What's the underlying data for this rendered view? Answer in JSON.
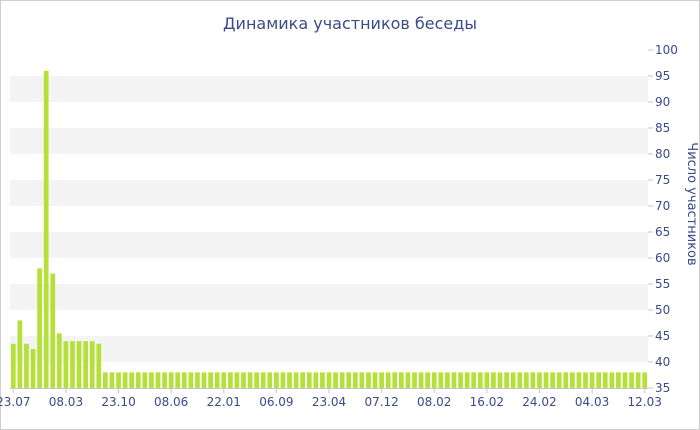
{
  "chart_data": {
    "type": "bar",
    "title": "Динамика участников беседы",
    "xlabel": "",
    "ylabel": "Число участников",
    "ylim": [
      35,
      100
    ],
    "yticks": [
      35,
      40,
      45,
      50,
      55,
      60,
      65,
      70,
      75,
      80,
      85,
      90,
      95,
      100
    ],
    "y_axis_side": "right",
    "grid": "alternating horizontal bands",
    "bar_color": "#b5e03a",
    "x_tick_labels": [
      "23.07",
      "08.03",
      "23.10",
      "08.06",
      "22.01",
      "06.09",
      "23.04",
      "07.12",
      "08.02",
      "16.02",
      "24.02",
      "04.03",
      "12.03"
    ],
    "x_tick_bar_index": [
      0,
      8,
      16,
      24,
      32,
      40,
      48,
      56,
      64,
      72,
      80,
      88,
      96
    ],
    "values": [
      43.5,
      48,
      43.5,
      42.5,
      58,
      96,
      57,
      45.5,
      44,
      44,
      44,
      44,
      44,
      43.5,
      38,
      38,
      38,
      38,
      38,
      38,
      38,
      38,
      38,
      38,
      38,
      38,
      38,
      38,
      38,
      38,
      38,
      38,
      38,
      38,
      38,
      38,
      38,
      38,
      38,
      38,
      38,
      38,
      38,
      38,
      38,
      38,
      38,
      38,
      38,
      38,
      38,
      38,
      38,
      38,
      38,
      38,
      38,
      38,
      38,
      38,
      38,
      38,
      38,
      38,
      38,
      38,
      38,
      38,
      38,
      38,
      38,
      38,
      38,
      38,
      38,
      38,
      38,
      38,
      38,
      38,
      38,
      38,
      38,
      38,
      38,
      38,
      38,
      38,
      38,
      38,
      38,
      38,
      38,
      38,
      38,
      38,
      38
    ]
  }
}
